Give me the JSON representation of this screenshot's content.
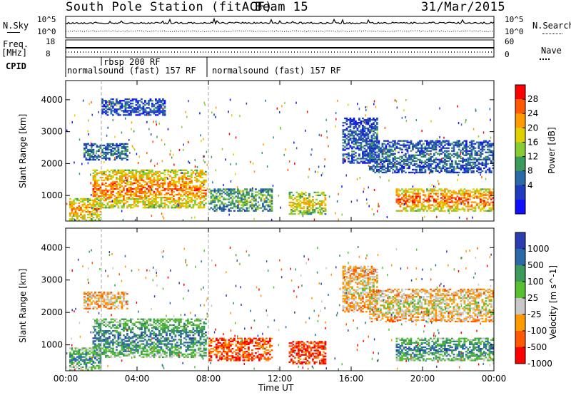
{
  "header": {
    "station": "South Pole Station (fitACF)",
    "beam": "Beam 15",
    "date": "31/Mar/2015"
  },
  "aux": {
    "nsky_label": "N.Sky",
    "nsky_ticks": [
      "10^5",
      "10^0"
    ],
    "nsearch_label": "N.Search",
    "nsearch_ticks": [
      "10^5",
      "10^0"
    ],
    "freq_label": "Freq.",
    "freq_unit": "[MHz]",
    "freq_ticks": [
      "18",
      "8"
    ],
    "nave_label": "Nave",
    "nave_ticks": [
      "60",
      "0"
    ],
    "cpid_label": "CPID",
    "cpid_segments": [
      "rbsp 200 RF",
      "normalsound (fast) 157 RF",
      "normalsound (fast) 157 RF"
    ]
  },
  "chart_data": [
    {
      "type": "heatmap",
      "panel": "power",
      "ylabel": "Slant Range [km]",
      "y_ticks": [
        1000,
        2000,
        3000,
        4000
      ],
      "ylim": [
        200,
        4600
      ],
      "colorbar_label": "Power [dB]",
      "colorbar_ticks": [
        "28",
        "24",
        "20",
        "16",
        "12",
        "8",
        "4"
      ],
      "colors": [
        "#ff0000",
        "#ff5a00",
        "#ff9a00",
        "#e0d000",
        "#88cc33",
        "#3c9a5a",
        "#2a6aa8",
        "#1f3cbf",
        "#1010ff"
      ],
      "echo_regions": [
        {
          "t0": 0.2,
          "t1": 2.0,
          "r0": 200,
          "r1": 900,
          "level": 0.8
        },
        {
          "t0": 1.5,
          "t1": 7.8,
          "r0": 600,
          "r1": 1800,
          "level": 0.85
        },
        {
          "t0": 1.0,
          "t1": 3.5,
          "r0": 2100,
          "r1": 2600,
          "level": 0.3
        },
        {
          "t0": 2.0,
          "t1": 5.5,
          "r0": 3500,
          "r1": 4000,
          "level": 0.2
        },
        {
          "t0": 8.0,
          "t1": 11.5,
          "r0": 500,
          "r1": 1200,
          "level": 0.45
        },
        {
          "t0": 12.5,
          "t1": 14.5,
          "r0": 400,
          "r1": 1100,
          "level": 0.7
        },
        {
          "t0": 15.5,
          "t1": 17.5,
          "r0": 2000,
          "r1": 3400,
          "level": 0.2
        },
        {
          "t0": 17.0,
          "t1": 24.0,
          "r0": 1700,
          "r1": 2700,
          "level": 0.25
        },
        {
          "t0": 18.5,
          "t1": 24.0,
          "r0": 500,
          "r1": 1200,
          "level": 0.9
        }
      ]
    },
    {
      "type": "heatmap",
      "panel": "velocity",
      "ylabel": "Slant Range [km]",
      "y_ticks": [
        1000,
        2000,
        3000,
        4000
      ],
      "ylim": [
        200,
        4600
      ],
      "colorbar_label": "Velocity [m s^-1]",
      "colorbar_ticks": [
        "1000",
        "500",
        "100",
        "25",
        "-25",
        "-100",
        "-500",
        "-1000"
      ],
      "colors": [
        "#2a3cb0",
        "#2a6aa8",
        "#3c9a5a",
        "#58c030",
        "#c8c8c8",
        "#ff9a00",
        "#ff5a00",
        "#ff0000"
      ],
      "echo_regions": [
        {
          "t0": 0.2,
          "t1": 2.0,
          "r0": 200,
          "r1": 900,
          "level": 0.8
        },
        {
          "t0": 1.5,
          "t1": 7.8,
          "r0": 600,
          "r1": 1800,
          "level": 0.85
        },
        {
          "t0": 1.0,
          "t1": 3.5,
          "r0": 2100,
          "r1": 2600,
          "level": 0.4
        },
        {
          "t0": 8.0,
          "t1": 11.5,
          "r0": 500,
          "r1": 1200,
          "level": 0.15
        },
        {
          "t0": 12.5,
          "t1": 14.5,
          "r0": 400,
          "r1": 1100,
          "level": 0.1
        },
        {
          "t0": 15.5,
          "t1": 17.5,
          "r0": 2000,
          "r1": 3400,
          "level": 0.4
        },
        {
          "t0": 17.0,
          "t1": 24.0,
          "r0": 1700,
          "r1": 2700,
          "level": 0.45
        },
        {
          "t0": 18.5,
          "t1": 24.0,
          "r0": 500,
          "r1": 1200,
          "level": 0.85
        }
      ]
    }
  ],
  "x_axis": {
    "label": "Time UT",
    "ticks": [
      "00:00",
      "04:00",
      "08:00",
      "12:00",
      "16:00",
      "20:00",
      "00:00"
    ],
    "xlim": [
      0,
      24
    ]
  }
}
